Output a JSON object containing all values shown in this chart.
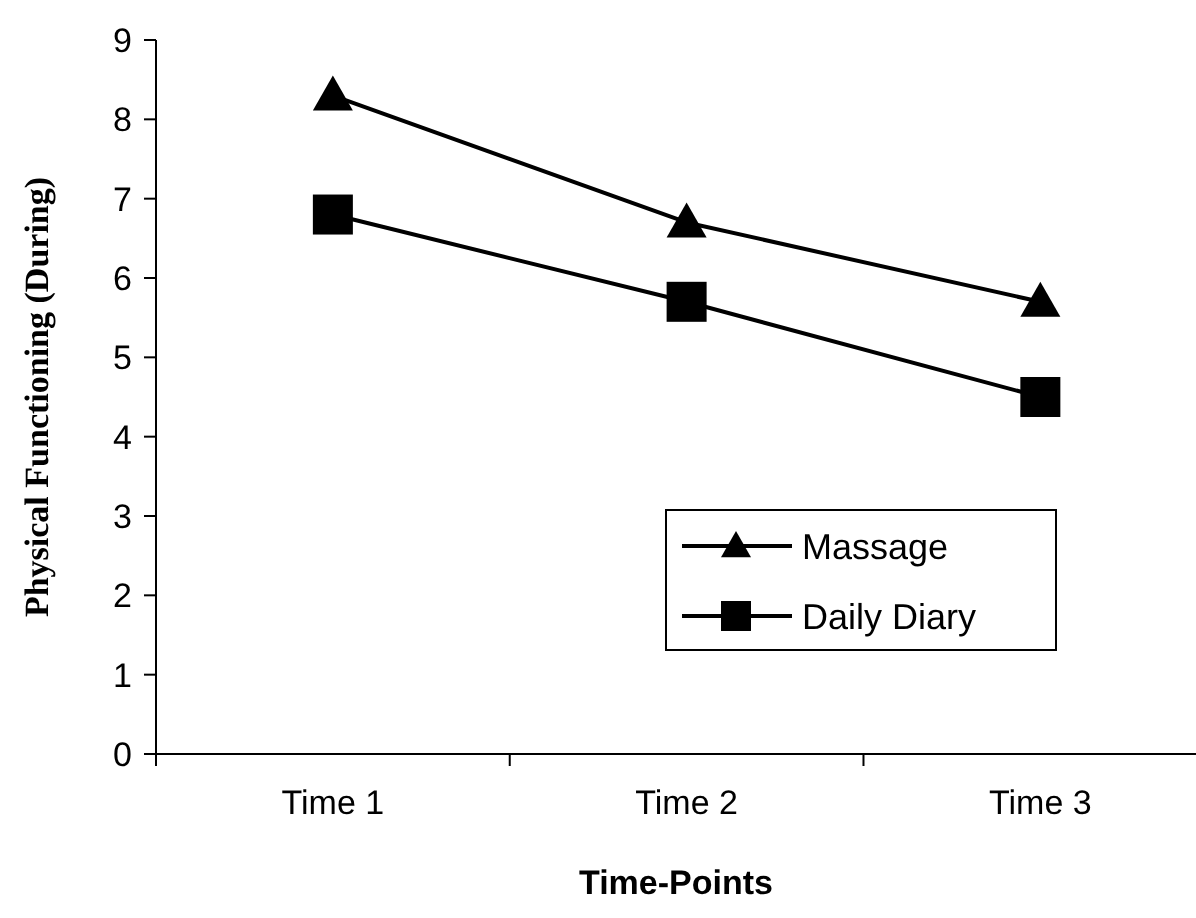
{
  "chart_data": {
    "type": "line",
    "xlabel": "Time-Points",
    "ylabel": "Physical Functioning (During)",
    "categories": [
      "Time 1",
      "Time 2",
      "Time 3"
    ],
    "series": [
      {
        "name": "Massage",
        "color": "#000000",
        "marker": "triangle",
        "values": [
          8.3,
          6.7,
          5.7
        ]
      },
      {
        "name": "Daily Diary",
        "color": "#000000",
        "marker": "square",
        "values": [
          6.8,
          5.7,
          4.5
        ]
      }
    ],
    "ylim": [
      0,
      9
    ],
    "yticks": [
      0,
      1,
      2,
      3,
      4,
      5,
      6,
      7,
      8,
      9
    ],
    "legend": "right",
    "line_style": "solid"
  }
}
